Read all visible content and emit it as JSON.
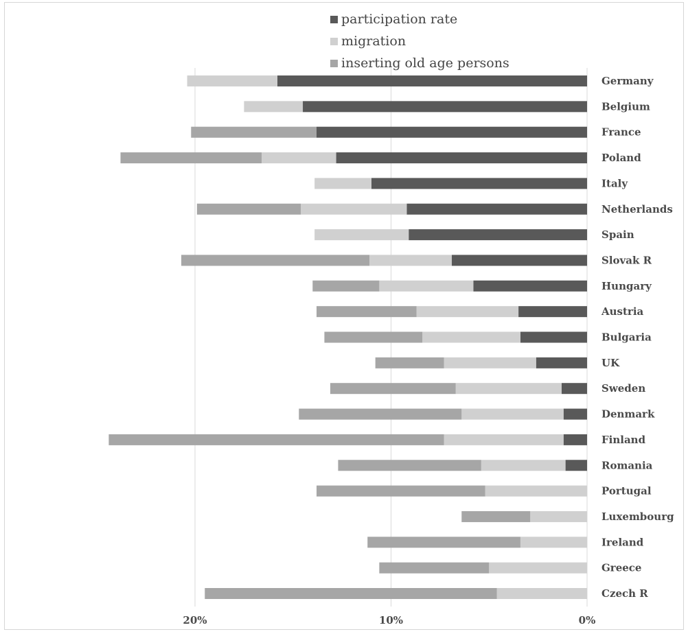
{
  "chart_data": {
    "type": "bar",
    "orientation": "horizontal-stacked",
    "x_direction": "reversed",
    "categories": [
      "Germany",
      "Belgium",
      "France",
      "Poland",
      "Italy",
      "Netherlands",
      "Spain",
      "Slovak R",
      "Hungary",
      "Austria",
      "Bulgaria",
      "UK",
      "Sweden",
      "Denmark",
      "Finland",
      "Romania",
      "Portugal",
      "Luxembourg",
      "Ireland",
      "Greece",
      "Czech R"
    ],
    "series": [
      {
        "name": "participation rate",
        "color": "#595959",
        "values": [
          15.8,
          14.5,
          13.8,
          12.8,
          11.0,
          9.2,
          9.1,
          6.9,
          5.8,
          3.5,
          3.4,
          2.6,
          1.3,
          1.2,
          1.2,
          1.1,
          0,
          0,
          0,
          0,
          0
        ]
      },
      {
        "name": "migration",
        "color": "#d0d0d0",
        "values": [
          4.6,
          3.0,
          0,
          3.8,
          2.9,
          5.4,
          4.8,
          4.2,
          4.8,
          5.2,
          5.0,
          4.7,
          5.4,
          5.2,
          6.1,
          4.3,
          5.2,
          2.9,
          3.4,
          5.0,
          4.6
        ]
      },
      {
        "name": "inserting old age persons",
        "color": "#a6a6a6",
        "values": [
          0,
          0,
          6.4,
          7.2,
          0,
          5.3,
          0,
          9.6,
          3.4,
          5.1,
          5.0,
          3.5,
          6.4,
          8.3,
          17.1,
          7.3,
          8.6,
          3.5,
          7.8,
          5.6,
          14.9
        ]
      }
    ],
    "xticks": [
      "20%",
      "10%",
      "0%"
    ],
    "xlim": [
      0,
      25
    ],
    "grid": "vertical",
    "legend": "top"
  }
}
